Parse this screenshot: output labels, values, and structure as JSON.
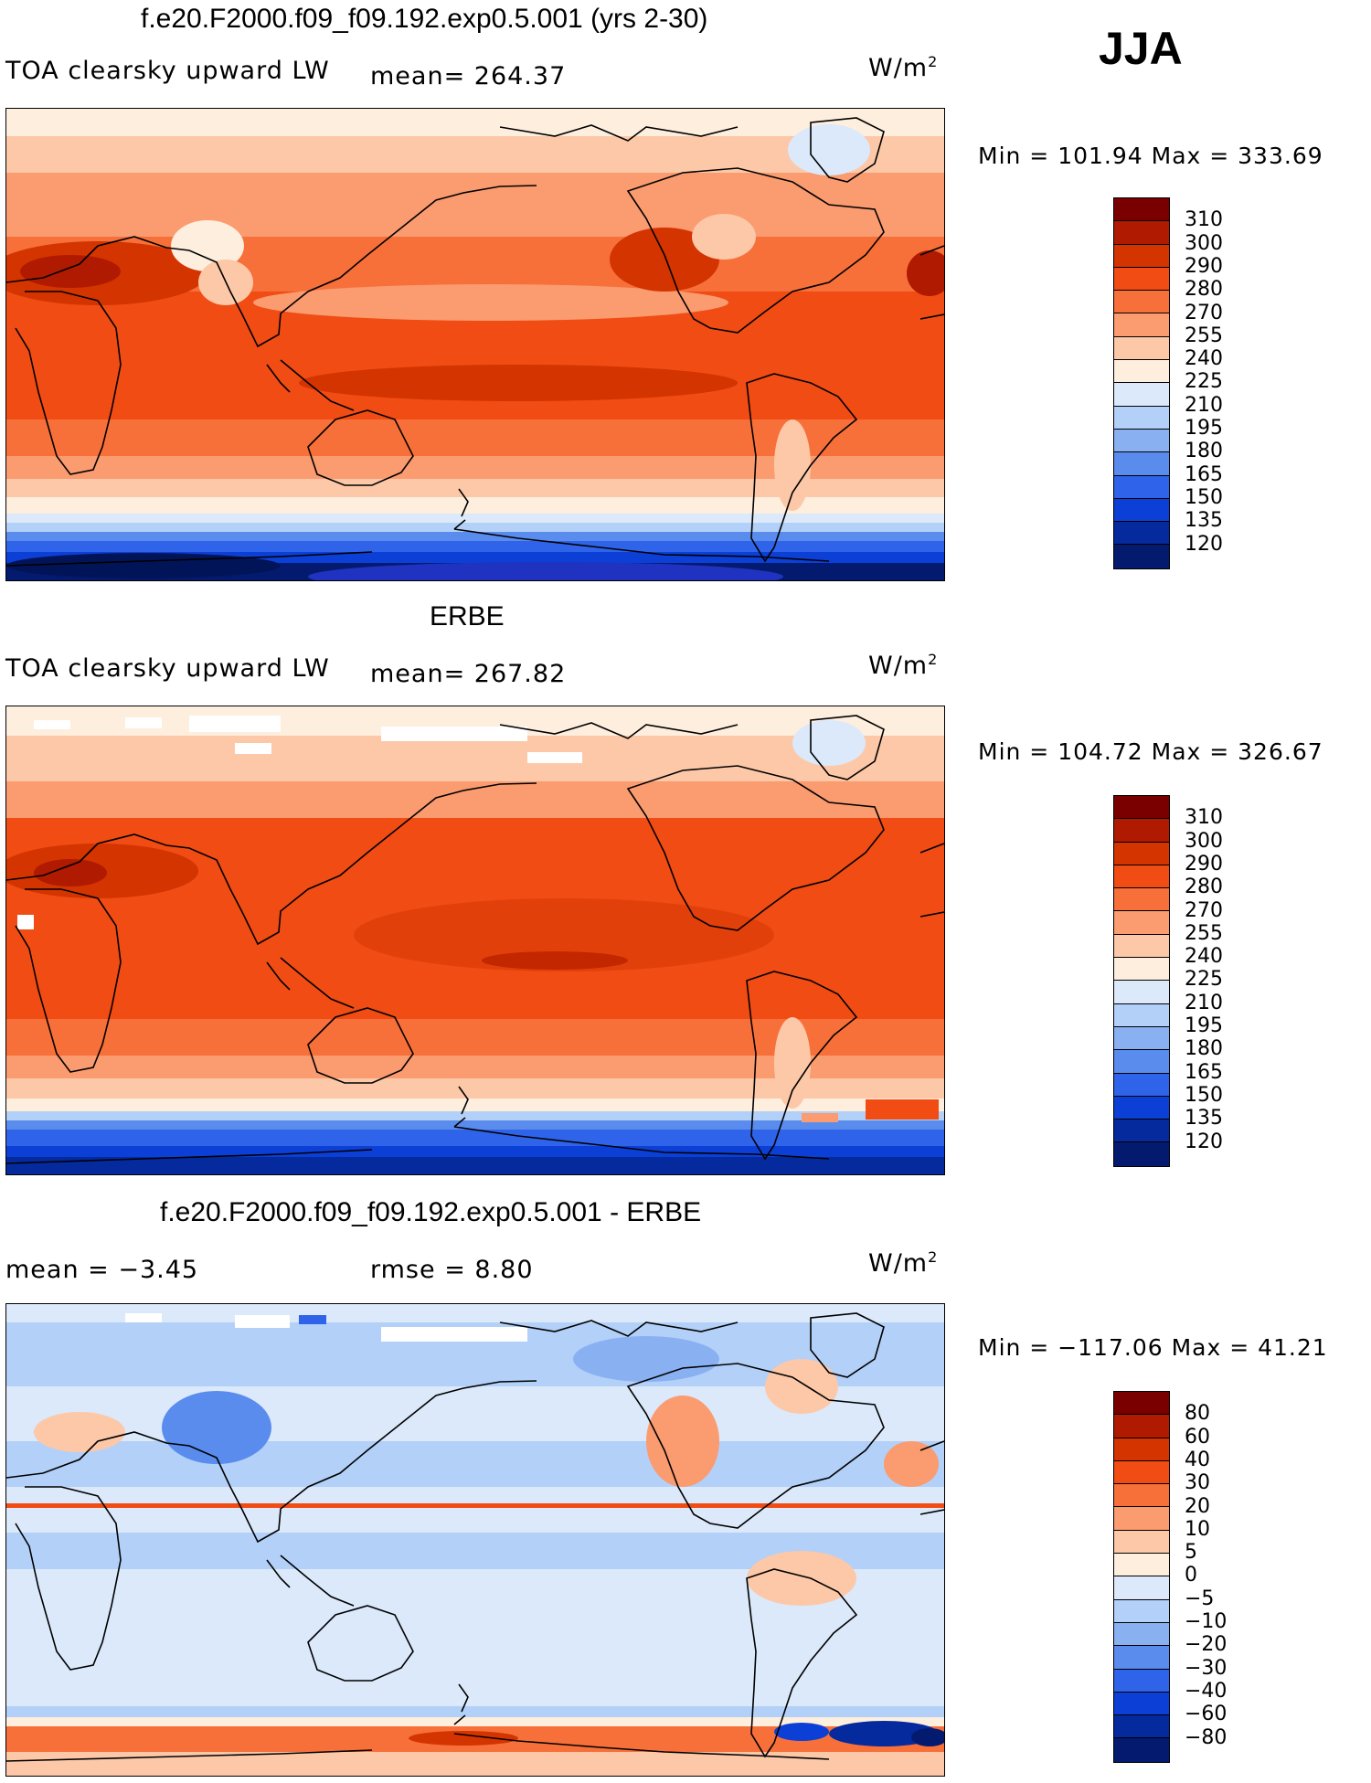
{
  "season": "JJA",
  "panels": [
    {
      "title": "f.e20.F2000.f09_f09.192.exp0.5.001 (yrs 2-30)",
      "variable": "TOA clearsky upward LW",
      "stat1": "mean= 264.37",
      "stat2": "",
      "units_base": "W/m",
      "units_exp": "2",
      "minmax": "Min = 101.94 Max = 333.69",
      "map_kind": "model",
      "colorbar_labels": [
        "310",
        "300",
        "290",
        "280",
        "270",
        "255",
        "240",
        "225",
        "210",
        "195",
        "180",
        "165",
        "150",
        "135",
        "120"
      ],
      "colorbar_colors": [
        "#7a0000",
        "#b01a00",
        "#d43400",
        "#f04c14",
        "#f7703a",
        "#fa9b70",
        "#fcc8a8",
        "#fdeede",
        "#dbe9fb",
        "#b3d0f8",
        "#89b1f2",
        "#5a8cee",
        "#2f63ea",
        "#0c3fd5",
        "#052a9e",
        "#041a6e"
      ]
    },
    {
      "title": "ERBE",
      "variable": "TOA clearsky upward LW",
      "stat1": "mean= 267.82",
      "stat2": "",
      "units_base": "W/m",
      "units_exp": "2",
      "minmax": "Min = 104.72 Max = 326.67",
      "map_kind": "obs",
      "colorbar_labels": [
        "310",
        "300",
        "290",
        "280",
        "270",
        "255",
        "240",
        "225",
        "210",
        "195",
        "180",
        "165",
        "150",
        "135",
        "120"
      ],
      "colorbar_colors": [
        "#7a0000",
        "#b01a00",
        "#d43400",
        "#f04c14",
        "#f7703a",
        "#fa9b70",
        "#fcc8a8",
        "#fdeede",
        "#dbe9fb",
        "#b3d0f8",
        "#89b1f2",
        "#5a8cee",
        "#2f63ea",
        "#0c3fd5",
        "#052a9e",
        "#041a6e"
      ]
    },
    {
      "title": "f.e20.F2000.f09_f09.192.exp0.5.001 - ERBE",
      "variable": "mean =   −3.45",
      "stat1": "",
      "stat2": "rmse =    8.80",
      "units_base": "W/m",
      "units_exp": "2",
      "minmax": "Min = −117.06 Max =  41.21",
      "map_kind": "diff",
      "colorbar_labels": [
        "80",
        "60",
        "40",
        "30",
        "20",
        "10",
        "5",
        "0",
        "−5",
        "−10",
        "−20",
        "−30",
        "−40",
        "−60",
        "−80"
      ],
      "colorbar_colors": [
        "#7a0000",
        "#b01a00",
        "#d43400",
        "#f04c14",
        "#f7703a",
        "#fa9b70",
        "#fcc8a8",
        "#fdeede",
        "#dbe9fb",
        "#b3d0f8",
        "#89b1f2",
        "#5a8cee",
        "#2f63ea",
        "#0c3fd5",
        "#052a9e",
        "#041a6e"
      ]
    }
  ]
}
